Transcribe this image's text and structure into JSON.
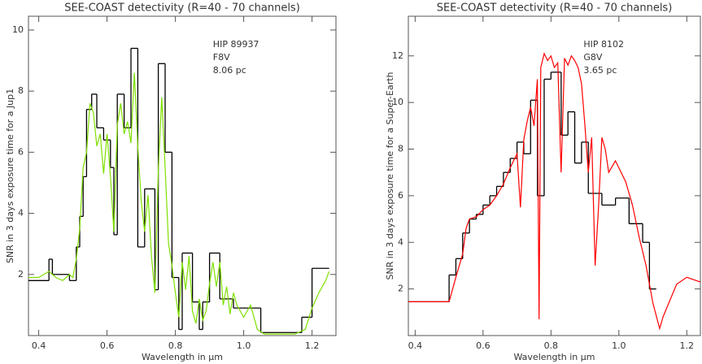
{
  "chart_data": [
    {
      "type": "line",
      "title": "SEE-COAST detectivity (R=40 - 70 channels)",
      "xlabel": "Wavelength in μm",
      "ylabel": "SNR in 3 days exposure time for a Jup1",
      "annotations": [
        "HIP 89937",
        "F8V",
        "8.06 pc"
      ],
      "xlim": [
        0.37,
        1.27
      ],
      "ylim": [
        0,
        10.45
      ],
      "xticks": [
        0.4,
        0.6,
        0.8,
        {
          "value": 1,
          "label": "1.0"
        },
        1.2
      ],
      "yticks": [
        2,
        4,
        6,
        8,
        10
      ],
      "series": [
        {
          "color": "#000000",
          "style": "step",
          "bins": [
            0.37,
            0.43,
            0.44,
            0.49,
            0.51,
            0.52,
            0.53,
            0.54,
            0.555,
            0.57,
            0.59,
            0.61,
            0.62,
            0.63,
            0.65,
            0.67,
            0.69,
            0.71,
            0.74,
            0.75,
            0.77,
            0.79,
            0.81,
            0.82,
            0.85,
            0.87,
            0.88,
            0.9,
            0.93,
            0.97,
            1.05,
            1.17,
            1.2,
            1.25
          ],
          "values": [
            1.8,
            2.5,
            2.0,
            1.8,
            2.9,
            3.9,
            5.2,
            7.4,
            7.9,
            6.8,
            6.4,
            5.5,
            3.3,
            7.9,
            6.8,
            9.4,
            2.9,
            4.8,
            1.5,
            8.9,
            6.0,
            1.9,
            0.2,
            2.7,
            1.1,
            0.2,
            1.1,
            2.7,
            1.2,
            0.9,
            0.1,
            0.6,
            2.2
          ]
        },
        {
          "color": "#7fe000",
          "style": "line",
          "x": [
            0.37,
            0.4,
            0.43,
            0.45,
            0.47,
            0.49,
            0.5,
            0.51,
            0.52,
            0.53,
            0.54,
            0.55,
            0.56,
            0.57,
            0.58,
            0.59,
            0.6,
            0.61,
            0.62,
            0.63,
            0.64,
            0.65,
            0.66,
            0.67,
            0.68,
            0.69,
            0.7,
            0.71,
            0.72,
            0.73,
            0.74,
            0.75,
            0.76,
            0.77,
            0.78,
            0.79,
            0.8,
            0.81,
            0.82,
            0.83,
            0.84,
            0.85,
            0.86,
            0.87,
            0.88,
            0.89,
            0.9,
            0.91,
            0.92,
            0.93,
            0.94,
            0.95,
            0.96,
            0.97,
            0.98,
            1.0,
            1.02,
            1.04,
            1.06,
            1.1,
            1.15,
            1.18,
            1.2,
            1.22,
            1.24,
            1.25
          ],
          "values": [
            1.9,
            1.9,
            2.1,
            1.9,
            1.8,
            2.0,
            1.9,
            2.5,
            3.5,
            5.5,
            6.0,
            7.6,
            7.3,
            6.2,
            6.6,
            5.3,
            6.6,
            5.2,
            3.4,
            6.9,
            7.6,
            6.6,
            7.0,
            6.3,
            8.6,
            6.2,
            4.4,
            3.4,
            4.6,
            2.6,
            1.4,
            5.4,
            7.8,
            5.5,
            3.0,
            2.3,
            1.4,
            0.6,
            2.4,
            1.5,
            2.6,
            0.8,
            0.4,
            1.2,
            0.5,
            0.8,
            1.7,
            2.4,
            1.6,
            2.4,
            1.0,
            1.6,
            0.7,
            1.4,
            1.0,
            0.6,
            1.0,
            0.2,
            0.05,
            0.05,
            0.05,
            0.2,
            0.9,
            1.4,
            1.8,
            2.1
          ]
        }
      ]
    },
    {
      "type": "line",
      "title": "SEE-COAST detectivity (R=40 - 70 channels)",
      "xlabel": "Wavelength in μm",
      "ylabel": "SNR in 3 days exposure time for a Super-Earth",
      "annotations": [
        "HIP 8102",
        "G8V",
        "3.65 pc"
      ],
      "xlim": [
        0.38,
        1.24
      ],
      "ylim": [
        0,
        13.7
      ],
      "xticks": [
        0.4,
        0.6,
        0.8,
        {
          "value": 1,
          "label": "1.0"
        },
        1.2
      ],
      "yticks": [
        2,
        4,
        6,
        8,
        10,
        12
      ],
      "series": [
        {
          "color": "#000000",
          "style": "step",
          "bins": [
            0.38,
            0.5,
            0.52,
            0.54,
            0.56,
            0.58,
            0.6,
            0.62,
            0.64,
            0.66,
            0.68,
            0.7,
            0.72,
            0.74,
            0.76,
            0.78,
            0.8,
            0.83,
            0.85,
            0.87,
            0.89,
            0.91,
            0.95,
            0.99,
            1.03,
            1.07,
            1.09,
            1.11
          ],
          "values": [
            1.45,
            2.6,
            3.3,
            4.4,
            5.0,
            5.2,
            5.6,
            6.0,
            6.4,
            7.0,
            7.6,
            8.3,
            7.8,
            10.1,
            6.0,
            11.0,
            11.3,
            8.6,
            9.6,
            7.4,
            8.3,
            6.1,
            5.6,
            5.9,
            4.8,
            4.0,
            2.0
          ]
        },
        {
          "color": "#ff0000",
          "style": "line",
          "x": [
            0.38,
            0.5,
            0.52,
            0.54,
            0.55,
            0.56,
            0.58,
            0.6,
            0.62,
            0.64,
            0.66,
            0.68,
            0.7,
            0.71,
            0.72,
            0.73,
            0.74,
            0.75,
            0.76,
            0.765,
            0.77,
            0.78,
            0.79,
            0.8,
            0.81,
            0.82,
            0.83,
            0.84,
            0.85,
            0.86,
            0.87,
            0.88,
            0.89,
            0.9,
            0.91,
            0.92,
            0.93,
            0.94,
            0.95,
            0.96,
            0.97,
            0.99,
            1.0,
            1.02,
            1.04,
            1.06,
            1.08,
            1.1,
            1.12,
            1.13,
            1.15,
            1.17,
            1.2,
            1.22,
            1.24
          ],
          "values": [
            1.45,
            1.45,
            2.5,
            3.5,
            4.6,
            5.0,
            5.1,
            5.4,
            5.6,
            6.0,
            6.5,
            7.2,
            7.8,
            5.5,
            8.4,
            9.2,
            9.8,
            9.0,
            11.0,
            0.7,
            11.5,
            12.1,
            11.8,
            12.0,
            11.5,
            11.7,
            7.0,
            11.9,
            11.6,
            12.0,
            11.8,
            11.5,
            10.8,
            9.0,
            7.0,
            8.5,
            3.0,
            5.5,
            8.5,
            8.0,
            7.0,
            7.5,
            7.2,
            6.6,
            5.6,
            4.2,
            3.0,
            1.4,
            0.3,
            0.8,
            1.5,
            2.2,
            2.5,
            2.4,
            2.3
          ]
        }
      ]
    }
  ]
}
